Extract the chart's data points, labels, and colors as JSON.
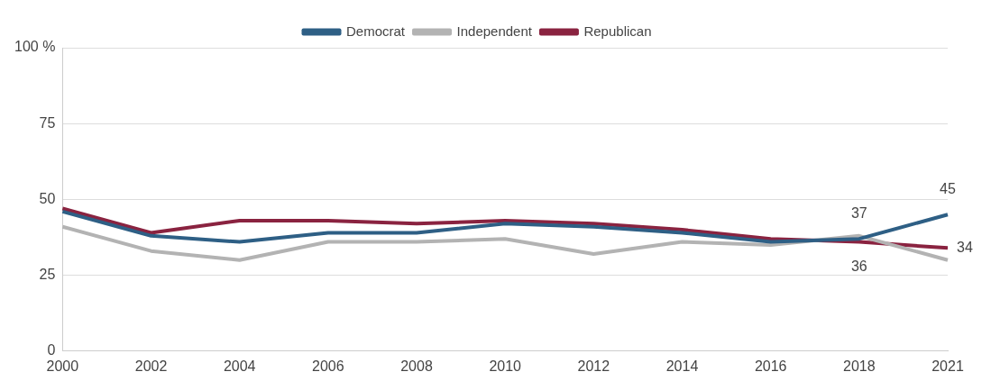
{
  "chart_data": {
    "type": "line",
    "categories": [
      "2000",
      "2002",
      "2004",
      "2006",
      "2008",
      "2010",
      "2012",
      "2014",
      "2016",
      "2018",
      "2021"
    ],
    "series": [
      {
        "name": "Democrat",
        "color": "#2e5f85",
        "values": [
          46,
          38,
          36,
          39,
          39,
          42,
          41,
          39,
          36,
          37,
          45
        ],
        "value_labels": [
          null,
          null,
          null,
          null,
          null,
          null,
          null,
          null,
          null,
          "37",
          "45"
        ]
      },
      {
        "name": "Independent",
        "color": "#b3b3b3",
        "values": [
          41,
          33,
          30,
          36,
          36,
          37,
          32,
          36,
          35,
          38,
          30
        ]
      },
      {
        "name": "Republican",
        "color": "#8a2340",
        "values": [
          47,
          39,
          43,
          43,
          42,
          43,
          42,
          40,
          37,
          36,
          34
        ],
        "value_labels": [
          null,
          null,
          null,
          null,
          null,
          null,
          null,
          null,
          null,
          "36",
          "34"
        ]
      }
    ],
    "ylim": [
      0,
      100
    ],
    "yticks": [
      0,
      25,
      50,
      75,
      {
        "value": 100,
        "label": "100 %"
      }
    ],
    "grid": "y",
    "legend": "top",
    "marker": "none",
    "line_style": "solid"
  }
}
